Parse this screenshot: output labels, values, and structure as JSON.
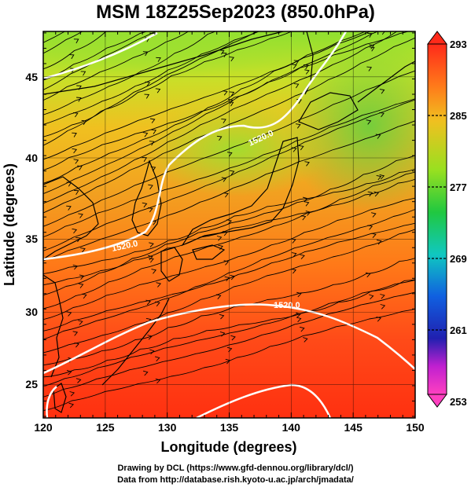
{
  "title": "MSM 18Z25Sep2023 (850.0hPa)",
  "credits": {
    "line1": "Drawing by DCL (https://www.gfd-dennou.org/library/dcl/)",
    "line2": "Data from http://database.rish.kyoto-u.ac.jp/arch/jmadata/"
  },
  "map": {
    "lon_range": [
      120,
      150
    ],
    "lat_range": [
      22.4,
      47.6
    ],
    "xlabel": "Longitude (degrees)",
    "ylabel": "Latitude  (degrees)",
    "xticks": [
      "120",
      "125",
      "130",
      "135",
      "140",
      "145",
      "150"
    ],
    "yticks": [
      "25",
      "30",
      "35",
      "40",
      "45"
    ],
    "contour_labels": [
      "1520.0",
      "1520.0",
      "1520.0"
    ]
  },
  "colorbar": {
    "labels": [
      "293",
      "285",
      "277",
      "269",
      "261",
      "253"
    ],
    "colors_top_to_bottom": [
      "#ff2a1a",
      "#ff7a1a",
      "#f0c020",
      "#98e020",
      "#20c840",
      "#10c8c0",
      "#1060e0",
      "#2020b0",
      "#c020d0",
      "#ff40c0"
    ]
  }
}
